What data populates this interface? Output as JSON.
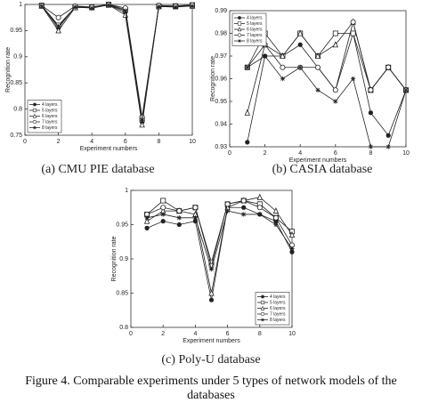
{
  "figure_caption": "Figure 4.   Comparable experiments under 5 types of network models of the databases",
  "chart_data": [
    {
      "type": "line",
      "caption": "(a) CMU PIE database",
      "x_label": "Experiment numbers",
      "y_label": "Recognition rate",
      "x": [
        1,
        2,
        3,
        4,
        5,
        6,
        7,
        8,
        9,
        10
      ],
      "xlim": [
        0,
        10
      ],
      "xticks": [
        0,
        2,
        4,
        6,
        8,
        10
      ],
      "ylim": [
        0.75,
        1
      ],
      "yticks": [
        0.75,
        0.8,
        0.85,
        0.9,
        0.95,
        1
      ],
      "legend": "lower left",
      "series": [
        {
          "name": "4 layers",
          "color": "#222222",
          "marker": "filled-circle",
          "values": [
            0.998,
            0.955,
            0.996,
            0.994,
            0.999,
            0.985,
            0.775,
            0.997,
            0.996,
            0.998
          ]
        },
        {
          "name": "5 layers",
          "color": "#222222",
          "marker": "square",
          "values": [
            0.998,
            0.96,
            0.995,
            0.995,
            1.0,
            0.99,
            0.78,
            0.997,
            0.997,
            0.999
          ]
        },
        {
          "name": "6 layers",
          "color": "#222222",
          "marker": "triangle",
          "values": [
            0.997,
            0.95,
            0.994,
            0.994,
            0.999,
            0.98,
            0.77,
            0.996,
            0.996,
            0.997
          ]
        },
        {
          "name": "7 layers",
          "color": "#222222",
          "marker": "open-circle",
          "values": [
            0.998,
            0.975,
            0.997,
            0.995,
            1.0,
            0.993,
            0.785,
            0.998,
            0.997,
            0.999
          ]
        },
        {
          "name": "8 layers",
          "color": "#222222",
          "marker": "star",
          "values": [
            0.997,
            0.958,
            0.995,
            0.993,
            0.999,
            0.988,
            0.778,
            0.996,
            0.995,
            0.997
          ]
        }
      ]
    },
    {
      "type": "line",
      "caption": "(b) CASIA database",
      "x_label": "Experiment numbers",
      "y_label": "Recognition rate",
      "x": [
        1,
        2,
        3,
        4,
        5,
        6,
        7,
        8,
        9,
        10
      ],
      "xlim": [
        0,
        10
      ],
      "xticks": [
        0,
        2,
        4,
        6,
        8,
        10
      ],
      "ylim": [
        0.93,
        0.99
      ],
      "yticks": [
        0.93,
        0.94,
        0.95,
        0.96,
        0.97,
        0.98,
        0.99
      ],
      "legend": "upper left",
      "series": [
        {
          "name": "4 layers",
          "color": "#222222",
          "marker": "filled-circle",
          "values": [
            0.932,
            0.97,
            0.97,
            0.975,
            0.965,
            0.955,
            0.98,
            0.945,
            0.935,
            0.955
          ]
        },
        {
          "name": "5 layers",
          "color": "#222222",
          "marker": "square",
          "values": [
            0.965,
            0.98,
            0.97,
            0.98,
            0.97,
            0.98,
            0.98,
            0.955,
            0.965,
            0.955
          ]
        },
        {
          "name": "6 layers",
          "color": "#222222",
          "marker": "triangle",
          "values": [
            0.945,
            0.975,
            0.97,
            0.98,
            0.97,
            0.975,
            0.985,
            0.955,
            0.965,
            0.955
          ]
        },
        {
          "name": "7 layers",
          "color": "#222222",
          "marker": "open-circle",
          "values": [
            0.965,
            0.975,
            0.965,
            0.965,
            0.965,
            0.955,
            0.985,
            0.955,
            0.965,
            0.955
          ]
        },
        {
          "name": "8 layers",
          "color": "#222222",
          "marker": "star",
          "values": [
            0.965,
            0.97,
            0.96,
            0.965,
            0.955,
            0.95,
            0.96,
            0.93,
            0.93,
            0.955
          ]
        }
      ]
    },
    {
      "type": "line",
      "caption": "(c) Poly-U database",
      "x_label": "Experiment numbers",
      "y_label": "Recognition rate",
      "x": [
        1,
        2,
        3,
        4,
        5,
        6,
        7,
        8,
        9,
        10
      ],
      "xlim": [
        0,
        10
      ],
      "xticks": [
        0,
        2,
        4,
        6,
        8,
        10
      ],
      "ylim": [
        0.8,
        1
      ],
      "yticks": [
        0.8,
        0.85,
        0.9,
        0.95,
        1
      ],
      "legend": "lower right",
      "series": [
        {
          "name": "4 layers",
          "color": "#222222",
          "marker": "filled-circle",
          "values": [
            0.945,
            0.955,
            0.95,
            0.955,
            0.84,
            0.975,
            0.975,
            0.965,
            0.955,
            0.91
          ]
        },
        {
          "name": "5 layers",
          "color": "#222222",
          "marker": "square",
          "values": [
            0.965,
            0.985,
            0.97,
            0.975,
            0.895,
            0.98,
            0.985,
            0.98,
            0.96,
            0.94
          ]
        },
        {
          "name": "6 layers",
          "color": "#222222",
          "marker": "triangle",
          "values": [
            0.955,
            0.97,
            0.97,
            0.965,
            0.85,
            0.975,
            0.985,
            0.99,
            0.97,
            0.935
          ]
        },
        {
          "name": "7 layers",
          "color": "#222222",
          "marker": "open-circle",
          "values": [
            0.965,
            0.975,
            0.97,
            0.975,
            0.89,
            0.98,
            0.985,
            0.975,
            0.96,
            0.92
          ]
        },
        {
          "name": "8 layers",
          "color": "#222222",
          "marker": "star",
          "values": [
            0.96,
            0.965,
            0.96,
            0.96,
            0.885,
            0.97,
            0.965,
            0.965,
            0.95,
            0.915
          ]
        }
      ]
    }
  ]
}
